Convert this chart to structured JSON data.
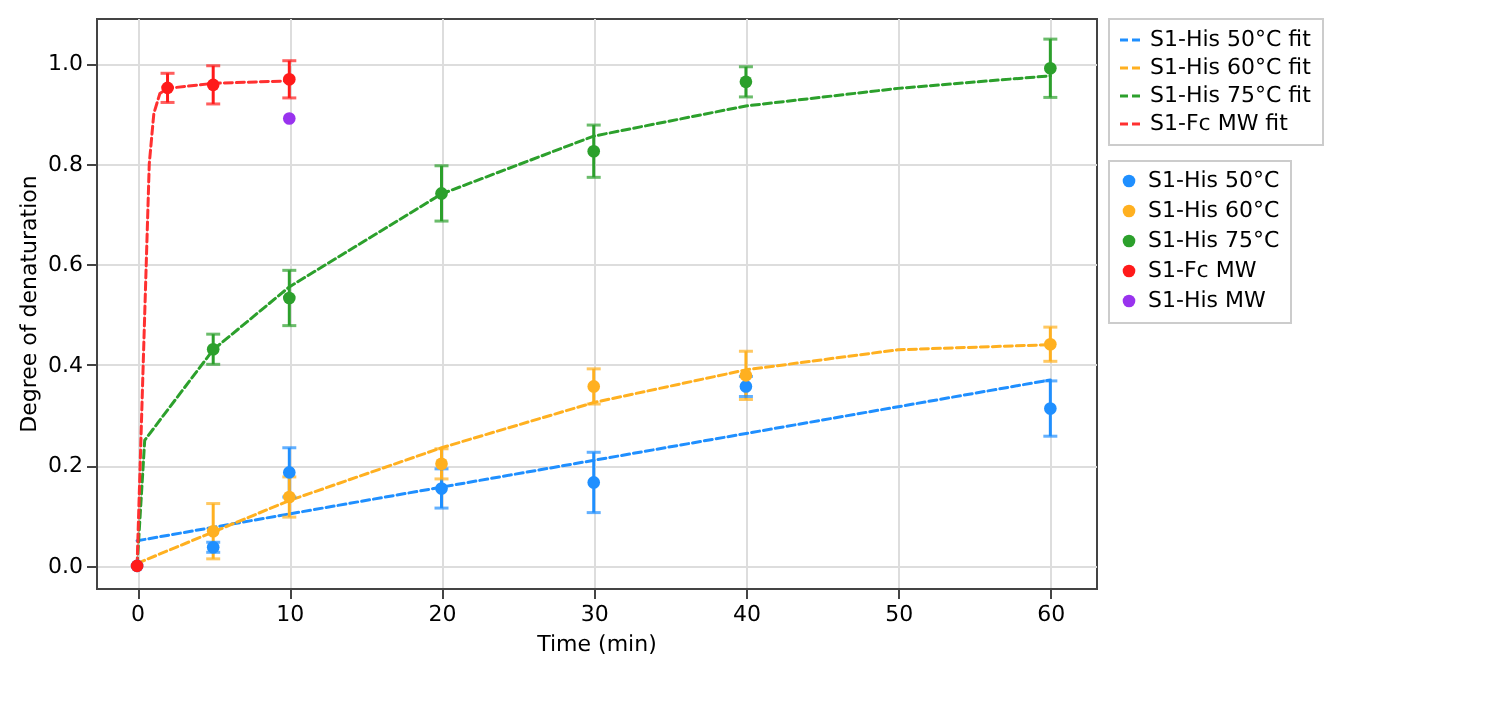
{
  "chart_data": {
    "type": "line",
    "xlabel": "Time (min)",
    "ylabel": "Degree of denaturation",
    "xlim": [
      -2.7,
      63
    ],
    "ylim": [
      -0.044,
      1.09
    ],
    "xticks": [
      0,
      10,
      20,
      30,
      40,
      50,
      60
    ],
    "yticks": [
      {
        "value": 0,
        "label": "0.0"
      },
      {
        "value": 0.2,
        "label": "0.2"
      },
      {
        "value": 0.4,
        "label": "0.4"
      },
      {
        "value": 0.6,
        "label": "0.6"
      },
      {
        "value": 0.8,
        "label": "0.8"
      },
      {
        "value": 1,
        "label": "1.0"
      }
    ],
    "grid": true,
    "legend": "right",
    "series": [
      {
        "name": "S1-His 50°C fit",
        "line_style": "dashed",
        "color": "#1f8fff",
        "x": [
          0,
          60
        ],
        "values": [
          0.05,
          0.37
        ]
      },
      {
        "name": "S1-His 60°C fit",
        "line_style": "dashed",
        "color": "#ffb020",
        "x": [
          0,
          10,
          20,
          30,
          40,
          50,
          60
        ],
        "values": [
          0.005,
          0.13,
          0.235,
          0.325,
          0.39,
          0.43,
          0.44
        ]
      },
      {
        "name": "S1-His 75°C fit",
        "line_style": "dashed",
        "color": "#2ca02c",
        "x": [
          0,
          0.5,
          5,
          10,
          20,
          30,
          40,
          50,
          60
        ],
        "values": [
          0,
          0.25,
          0.43,
          0.555,
          0.74,
          0.855,
          0.915,
          0.95,
          0.975
        ]
      },
      {
        "name": "S1-Fc MW fit",
        "line_style": "dashed",
        "color": "#ff3030",
        "x": [
          0,
          0.5,
          0.8,
          1.1,
          1.5,
          2,
          5,
          10
        ],
        "values": [
          0,
          0.5,
          0.8,
          0.9,
          0.94,
          0.95,
          0.96,
          0.965
        ]
      },
      {
        "name": "S1-His 50°C",
        "type": "scatter",
        "marker": "circle",
        "color": "#1f8fff",
        "x": [
          0,
          5,
          10,
          20,
          30,
          40,
          60
        ],
        "values": [
          0,
          0.037,
          0.186,
          0.154,
          0.166,
          0.357,
          0.313
        ],
        "errors": [
          null,
          0.01,
          0.049,
          0.039,
          0.06,
          0.02,
          0.055
        ]
      },
      {
        "name": "S1-His 60°C",
        "type": "scatter",
        "marker": "circle",
        "color": "#ffb020",
        "x": [
          5,
          10,
          20,
          30,
          40,
          60
        ],
        "values": [
          0.069,
          0.137,
          0.203,
          0.357,
          0.379,
          0.441
        ],
        "errors": [
          0.055,
          0.04,
          0.03,
          0.035,
          0.048,
          0.034
        ]
      },
      {
        "name": "S1-His 75°C",
        "type": "scatter",
        "marker": "circle",
        "color": "#2ca02c",
        "x": [
          5,
          10,
          20,
          30,
          40,
          60
        ],
        "values": [
          0.431,
          0.533,
          0.741,
          0.825,
          0.963,
          0.99
        ],
        "errors": [
          0.03,
          0.055,
          0.055,
          0.052,
          0.03,
          0.058
        ]
      },
      {
        "name": "S1-Fc MW",
        "type": "scatter",
        "marker": "circle",
        "color": "#ff1a1a",
        "x": [
          0,
          2,
          5,
          10
        ],
        "values": [
          0,
          0.951,
          0.957,
          0.968
        ],
        "errors": [
          null,
          0.029,
          0.038,
          0.037
        ]
      },
      {
        "name": "S1-His MW",
        "type": "scatter",
        "marker": "circle",
        "color": "#9933ee",
        "x": [
          10
        ],
        "values": [
          0.89
        ]
      }
    ]
  }
}
